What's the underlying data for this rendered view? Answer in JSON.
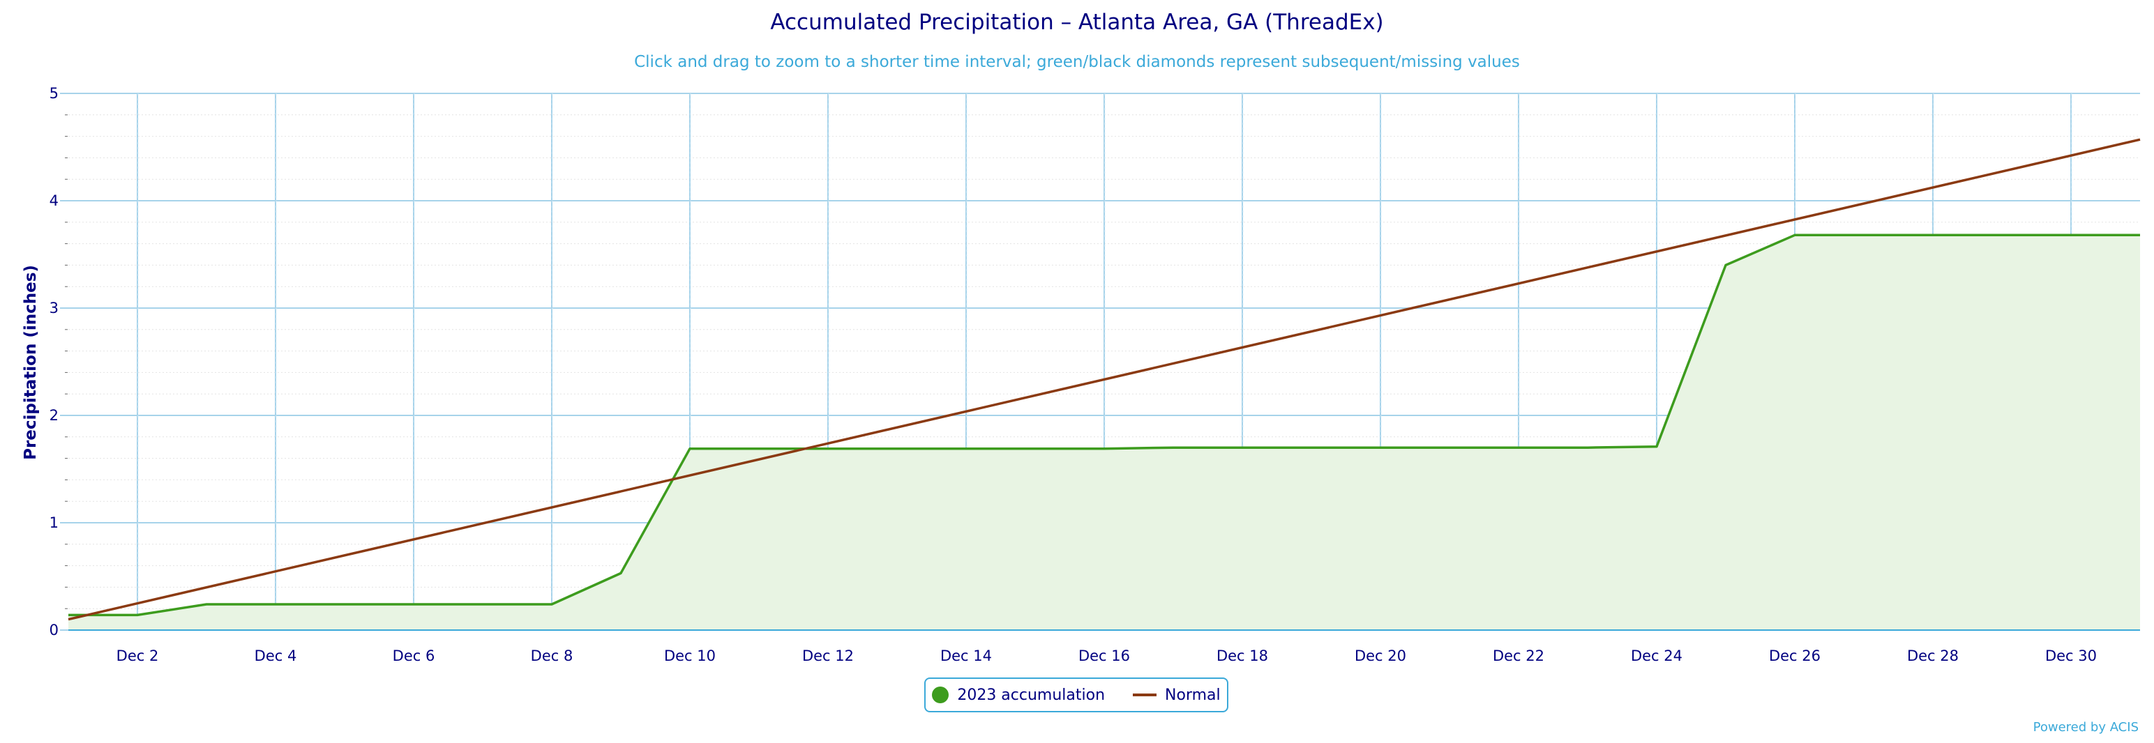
{
  "title": "Accumulated Precipitation – Atlanta Area, GA (ThreadEx)",
  "subtitle": "Click and drag to zoom to a shorter time interval; green/black diamonds represent subsequent/missing values",
  "credit": "Powered by ACIS",
  "colors": {
    "accumulation": "#3d9c1e",
    "accumulation_fill": "#e8f4e3",
    "normal": "#8b3a12",
    "grid": "#a7d3ea",
    "axis": "#000080",
    "accent": "#3ba9d9"
  },
  "chart_data": {
    "type": "line",
    "title": "Accumulated Precipitation – Atlanta Area, GA (ThreadEx)",
    "subtitle": "Click and drag to zoom to a shorter time interval; green/black diamonds represent subsequent/missing values",
    "ylabel": "Precipitation (inches)",
    "xlabel": "",
    "ylim": [
      0,
      5
    ],
    "yticks": [
      "0",
      "1",
      "2",
      "3",
      "4",
      "5"
    ],
    "xlim": [
      1,
      31
    ],
    "xticks": [
      {
        "day": 2,
        "label": "Dec 2"
      },
      {
        "day": 4,
        "label": "Dec 4"
      },
      {
        "day": 6,
        "label": "Dec 6"
      },
      {
        "day": 8,
        "label": "Dec 8"
      },
      {
        "day": 10,
        "label": "Dec 10"
      },
      {
        "day": 12,
        "label": "Dec 12"
      },
      {
        "day": 14,
        "label": "Dec 14"
      },
      {
        "day": 16,
        "label": "Dec 16"
      },
      {
        "day": 18,
        "label": "Dec 18"
      },
      {
        "day": 20,
        "label": "Dec 20"
      },
      {
        "day": 22,
        "label": "Dec 22"
      },
      {
        "day": 24,
        "label": "Dec 24"
      },
      {
        "day": 26,
        "label": "Dec 26"
      },
      {
        "day": 28,
        "label": "Dec 28"
      },
      {
        "day": 30,
        "label": "Dec 30"
      }
    ],
    "grid": true,
    "legend_position": "bottom-center",
    "series": [
      {
        "name": "2023 accumulation",
        "style": "area",
        "x": [
          1,
          2,
          3,
          4,
          5,
          6,
          7,
          8,
          9,
          10,
          11,
          12,
          13,
          14,
          15,
          16,
          17,
          18,
          19,
          20,
          21,
          22,
          23,
          24,
          25,
          26,
          27,
          28,
          29,
          30,
          31
        ],
        "values": [
          0.14,
          0.14,
          0.24,
          0.24,
          0.24,
          0.24,
          0.24,
          0.24,
          0.53,
          1.69,
          1.69,
          1.69,
          1.69,
          1.69,
          1.69,
          1.69,
          1.7,
          1.7,
          1.7,
          1.7,
          1.7,
          1.7,
          1.7,
          1.71,
          3.4,
          3.68,
          3.68,
          3.68,
          3.68,
          3.68,
          3.68
        ]
      },
      {
        "name": "Normal",
        "style": "line",
        "x": [
          1,
          31
        ],
        "values": [
          0.1,
          4.57
        ]
      }
    ]
  }
}
